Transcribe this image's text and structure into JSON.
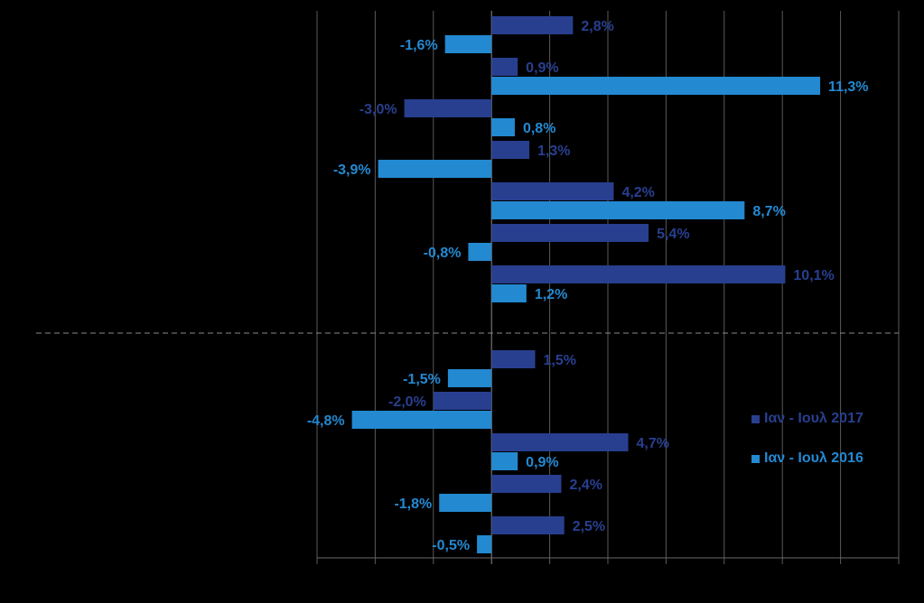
{
  "chart_data": {
    "type": "bar",
    "orientation": "horizontal",
    "title": "",
    "xlabel": "",
    "ylabel": "",
    "xlim": [
      -6,
      14
    ],
    "xtick_step": 2,
    "grid": true,
    "legend_position": "right",
    "groups": [
      {
        "series_2017": 2.8,
        "series_2016": -1.6
      },
      {
        "series_2017": 0.9,
        "series_2016": 11.3
      },
      {
        "series_2017": -3.0,
        "series_2016": 0.8
      },
      {
        "series_2017": 1.3,
        "series_2016": -3.9
      },
      {
        "series_2017": 4.2,
        "series_2016": 8.7
      },
      {
        "series_2017": 5.4,
        "series_2016": -0.8
      },
      {
        "series_2017": 10.1,
        "series_2016": 1.2
      },
      {
        "series_2017": 1.5,
        "series_2016": -1.5
      },
      {
        "series_2017": -2.0,
        "series_2016": -4.8
      },
      {
        "series_2017": 4.7,
        "series_2016": 0.9
      },
      {
        "series_2017": 2.4,
        "series_2016": -1.8
      },
      {
        "series_2017": 2.5,
        "series_2016": -0.5
      }
    ],
    "labels_2017": [
      "2,8%",
      "0,9%",
      "-3,0%",
      "1,3%",
      "4,2%",
      "5,4%",
      "10,1%",
      "1,5%",
      "-2,0%",
      "4,7%",
      "2,4%",
      "2,5%"
    ],
    "labels_2016": [
      "-1,6%",
      "11,3%",
      "0,8%",
      "-3,9%",
      "8,7%",
      "-0,8%",
      "1,2%",
      "-1,5%",
      "-4,8%",
      "0,9%",
      "-1,8%",
      "-0,5%"
    ],
    "series": [
      {
        "name": "Ιαν - Ιουλ 2017",
        "color": "#283F8F"
      },
      {
        "name": "Ιαν - Ιουλ 2016",
        "color": "#2389D1"
      }
    ]
  }
}
